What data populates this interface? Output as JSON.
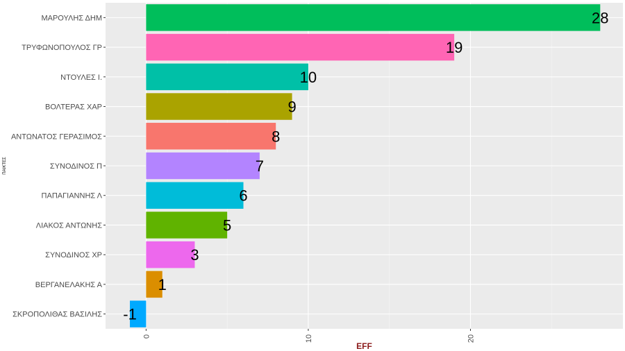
{
  "chart_data": {
    "type": "bar",
    "orientation": "horizontal",
    "categories": [
      "ΜΑΡΟΥΛΗΣ ΔΗΜ",
      "ΤΡΥΦΩΝΟΠΟΥΛΟΣ ΓΡ",
      "ΝΤΟΥΛΕΣ Ι.",
      "ΒΟΛΤΕΡΑΣ ΧΑΡ",
      "ΑΝΤΩΝΑΤΟΣ ΓΕΡΑΣΙΜΟΣ",
      "ΣΥΝΟΔΙΝΟΣ Π",
      "ΠΑΠΑΓΙΑΝΝΗΣ Λ",
      "ΛΙΑΚΟΣ ΑΝΤΩΝΗΣ",
      "ΣΥΝΟΔΙΝΟΣ ΧΡ",
      "ΒΕΡΓΑΝΕΛΑΚΗΣ Α",
      "ΣΚΡΟΠΟΛΙΘΑΣ ΒΑΣΙΛΗΣ"
    ],
    "values": [
      28,
      19,
      10,
      9,
      8,
      7,
      6,
      5,
      3,
      1,
      -1
    ],
    "data_labels": [
      "28",
      "19",
      "10",
      "9",
      "8",
      "7",
      "6",
      "5",
      "3",
      "1",
      "-1"
    ],
    "colors": [
      "#00BE5B",
      "#FF65B4",
      "#00C0A7",
      "#AAA300",
      "#F8766D",
      "#B384FF",
      "#00BCD9",
      "#60B300",
      "#ED68ED",
      "#DB8E00",
      "#00A9FF"
    ],
    "xlabel": "EFF",
    "ylabel": "ΠΑΙΚΤΕΣ",
    "xlim": [
      -2.5,
      29.4
    ],
    "x_ticks": [
      0,
      10,
      20
    ],
    "x_tick_labels": [
      "0",
      "10",
      "20"
    ],
    "grid": true,
    "legend": "none"
  }
}
